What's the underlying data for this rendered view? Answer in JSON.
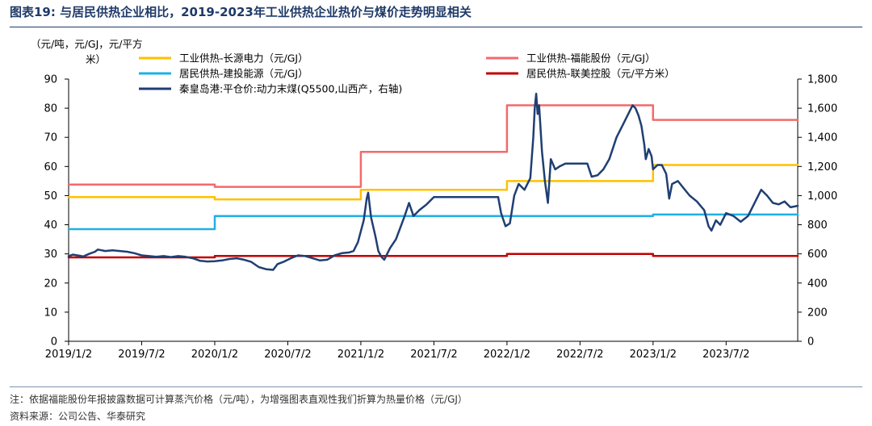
{
  "header": {
    "title": "图表19:  与居民供热企业相比，2019-2023年工业供热企业热价与煤价走势明显相关"
  },
  "footer": {
    "note": "注：依据福能股份年报披露数据可计算蒸汽价格（元/吨），为增强图表直观性我们折算为热量价格（元/GJ）",
    "source": "资料来源：公司公告、华泰研究"
  },
  "chart_data": {
    "type": "line",
    "title": "",
    "left_axis_label_line1": "（元/吨，元/GJ，元/平方",
    "left_axis_label_line2": "米）",
    "x_ticks": [
      "2019/1/2",
      "2019/7/2",
      "2020/1/2",
      "2020/7/2",
      "2021/1/2",
      "2021/7/2",
      "2022/1/2",
      "2022/7/2",
      "2023/1/2",
      "2023/7/2"
    ],
    "x_range": [
      2019.0,
      2023.99
    ],
    "y_left": {
      "range": [
        0,
        90
      ],
      "ticks": [
        "0",
        "10",
        "20",
        "30",
        "40",
        "50",
        "60",
        "70",
        "80",
        "90"
      ]
    },
    "y_right": {
      "range": [
        0,
        1800
      ],
      "ticks": [
        "0",
        "200",
        "400",
        "600",
        "800",
        "1,000",
        "1,200",
        "1,400",
        "1,600",
        "1,800"
      ]
    },
    "grid": false,
    "legend_placement": "top",
    "series": [
      {
        "name": "工业供热-长源电力（元/GJ）",
        "color": "#ffc000",
        "axis": "left",
        "width": 2.5,
        "points": [
          [
            2019.0,
            49.5
          ],
          [
            2020.0,
            49.5
          ],
          [
            2020.0,
            48.7
          ],
          [
            2021.0,
            48.7
          ],
          [
            2021.0,
            52.0
          ],
          [
            2022.0,
            52.0
          ],
          [
            2022.0,
            55.0
          ],
          [
            2023.0,
            55.0
          ],
          [
            2023.0,
            60.5
          ],
          [
            2023.99,
            60.5
          ]
        ]
      },
      {
        "name": "工业供热-福能股份（元/GJ）",
        "color": "#f4696b",
        "axis": "left",
        "width": 2.5,
        "points": [
          [
            2019.0,
            53.8
          ],
          [
            2020.0,
            53.8
          ],
          [
            2020.0,
            53.0
          ],
          [
            2021.0,
            53.0
          ],
          [
            2021.0,
            65.0
          ],
          [
            2022.0,
            65.0
          ],
          [
            2022.0,
            81.0
          ],
          [
            2023.0,
            81.0
          ],
          [
            2023.0,
            76.0
          ],
          [
            2023.99,
            76.0
          ]
        ]
      },
      {
        "name": "居民供热-建投能源（元/GJ）",
        "color": "#1fb0e6",
        "axis": "left",
        "width": 2.5,
        "points": [
          [
            2019.0,
            38.5
          ],
          [
            2020.0,
            38.5
          ],
          [
            2020.0,
            43.0
          ],
          [
            2023.0,
            43.0
          ],
          [
            2023.0,
            43.5
          ],
          [
            2023.99,
            43.5
          ]
        ]
      },
      {
        "name": "居民供热-联美控股（元/平方米）",
        "color": "#c00000",
        "axis": "left",
        "width": 2.5,
        "points": [
          [
            2019.0,
            28.8
          ],
          [
            2020.0,
            28.8
          ],
          [
            2020.0,
            29.3
          ],
          [
            2022.0,
            29.3
          ],
          [
            2022.0,
            30.0
          ],
          [
            2023.0,
            30.0
          ],
          [
            2023.0,
            29.3
          ],
          [
            2023.99,
            29.3
          ]
        ]
      },
      {
        "name": "秦皇岛港:平仓价:动力末煤(Q5500,山西产，右轴)",
        "color": "#1f3f73",
        "axis": "right",
        "width": 2.5,
        "points": [
          [
            2019.0,
            585
          ],
          [
            2019.03,
            595
          ],
          [
            2019.06,
            590
          ],
          [
            2019.1,
            582
          ],
          [
            2019.14,
            600
          ],
          [
            2019.18,
            615
          ],
          [
            2019.2,
            630
          ],
          [
            2019.25,
            620
          ],
          [
            2019.3,
            625
          ],
          [
            2019.35,
            620
          ],
          [
            2019.4,
            615
          ],
          [
            2019.45,
            605
          ],
          [
            2019.5,
            590
          ],
          [
            2019.55,
            585
          ],
          [
            2019.6,
            580
          ],
          [
            2019.65,
            585
          ],
          [
            2019.7,
            578
          ],
          [
            2019.75,
            585
          ],
          [
            2019.8,
            580
          ],
          [
            2019.85,
            570
          ],
          [
            2019.9,
            552
          ],
          [
            2019.95,
            548
          ],
          [
            2020.0,
            550
          ],
          [
            2020.05,
            555
          ],
          [
            2020.1,
            565
          ],
          [
            2020.15,
            570
          ],
          [
            2020.2,
            560
          ],
          [
            2020.25,
            545
          ],
          [
            2020.3,
            510
          ],
          [
            2020.35,
            495
          ],
          [
            2020.4,
            490
          ],
          [
            2020.43,
            530
          ],
          [
            2020.47,
            545
          ],
          [
            2020.52,
            570
          ],
          [
            2020.57,
            590
          ],
          [
            2020.62,
            585
          ],
          [
            2020.67,
            570
          ],
          [
            2020.72,
            555
          ],
          [
            2020.77,
            560
          ],
          [
            2020.82,
            590
          ],
          [
            2020.87,
            605
          ],
          [
            2020.92,
            610
          ],
          [
            2020.95,
            620
          ],
          [
            2020.98,
            680
          ],
          [
            2021.02,
            830
          ],
          [
            2021.04,
            980
          ],
          [
            2021.05,
            1020
          ],
          [
            2021.07,
            850
          ],
          [
            2021.1,
            720
          ],
          [
            2021.12,
            620
          ],
          [
            2021.14,
            580
          ],
          [
            2021.16,
            560
          ],
          [
            2021.2,
            640
          ],
          [
            2021.24,
            700
          ],
          [
            2021.27,
            780
          ],
          [
            2021.3,
            860
          ],
          [
            2021.33,
            950
          ],
          [
            2021.36,
            860
          ],
          [
            2021.4,
            900
          ],
          [
            2021.45,
            940
          ],
          [
            2021.5,
            990
          ],
          [
            2021.55,
            990
          ],
          [
            2021.6,
            990
          ],
          [
            2021.7,
            990
          ],
          [
            2021.8,
            990
          ],
          [
            2021.9,
            990
          ],
          [
            2021.94,
            990
          ],
          [
            2021.96,
            880
          ],
          [
            2021.99,
            790
          ],
          [
            2022.02,
            810
          ],
          [
            2022.05,
            1000
          ],
          [
            2022.08,
            1080
          ],
          [
            2022.12,
            1040
          ],
          [
            2022.16,
            1120
          ],
          [
            2022.18,
            1400
          ],
          [
            2022.19,
            1600
          ],
          [
            2022.2,
            1700
          ],
          [
            2022.21,
            1560
          ],
          [
            2022.22,
            1620
          ],
          [
            2022.24,
            1300
          ],
          [
            2022.26,
            1100
          ],
          [
            2022.28,
            950
          ],
          [
            2022.3,
            1250
          ],
          [
            2022.33,
            1180
          ],
          [
            2022.36,
            1200
          ],
          [
            2022.4,
            1220
          ],
          [
            2022.45,
            1220
          ],
          [
            2022.5,
            1220
          ],
          [
            2022.55,
            1220
          ],
          [
            2022.58,
            1130
          ],
          [
            2022.62,
            1140
          ],
          [
            2022.66,
            1180
          ],
          [
            2022.7,
            1250
          ],
          [
            2022.75,
            1400
          ],
          [
            2022.8,
            1500
          ],
          [
            2022.84,
            1580
          ],
          [
            2022.86,
            1620
          ],
          [
            2022.88,
            1600
          ],
          [
            2022.9,
            1550
          ],
          [
            2022.92,
            1480
          ],
          [
            2022.94,
            1350
          ],
          [
            2022.95,
            1250
          ],
          [
            2022.97,
            1320
          ],
          [
            2022.99,
            1270
          ],
          [
            2023.0,
            1180
          ],
          [
            2023.03,
            1210
          ],
          [
            2023.06,
            1210
          ],
          [
            2023.09,
            1150
          ],
          [
            2023.11,
            980
          ],
          [
            2023.13,
            1080
          ],
          [
            2023.17,
            1100
          ],
          [
            2023.21,
            1050
          ],
          [
            2023.25,
            1000
          ],
          [
            2023.3,
            960
          ],
          [
            2023.35,
            900
          ],
          [
            2023.38,
            790
          ],
          [
            2023.4,
            760
          ],
          [
            2023.43,
            830
          ],
          [
            2023.46,
            800
          ],
          [
            2023.5,
            880
          ],
          [
            2023.55,
            860
          ],
          [
            2023.6,
            820
          ],
          [
            2023.65,
            860
          ],
          [
            2023.7,
            960
          ],
          [
            2023.74,
            1040
          ],
          [
            2023.78,
            1000
          ],
          [
            2023.82,
            950
          ],
          [
            2023.86,
            940
          ],
          [
            2023.9,
            960
          ],
          [
            2023.94,
            920
          ],
          [
            2023.99,
            930
          ]
        ]
      }
    ]
  }
}
